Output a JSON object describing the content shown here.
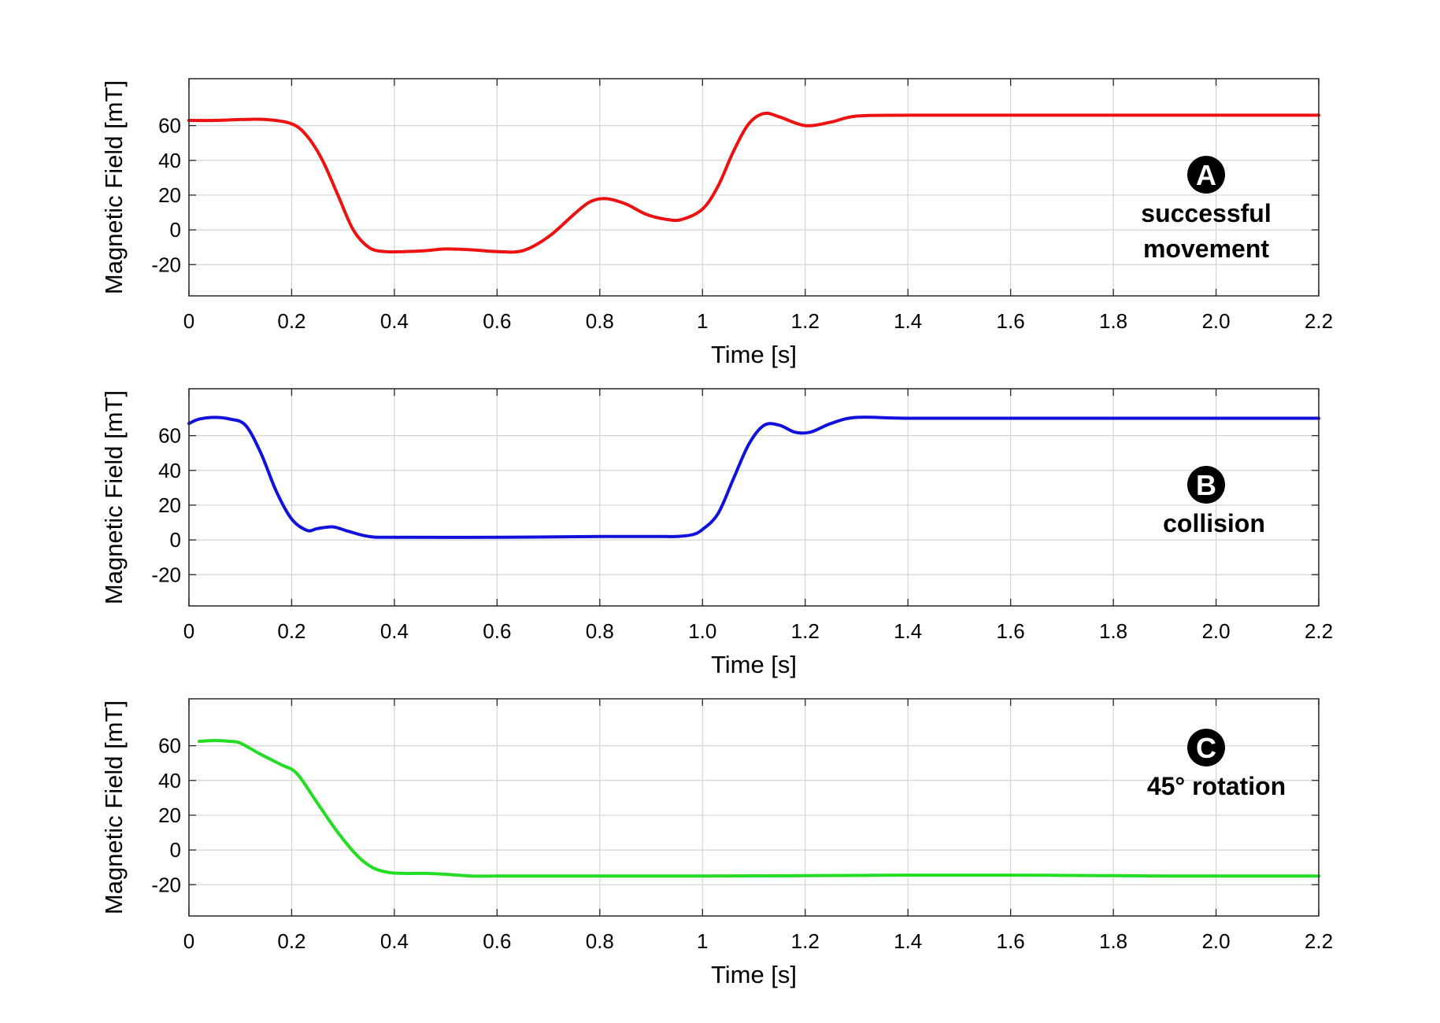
{
  "chart_data": [
    {
      "type": "line",
      "xlabel": "Time [s]",
      "ylabel": "Magnetic Field [mT]",
      "xlim": [
        0,
        2.2
      ],
      "ylim": [
        -38,
        87
      ],
      "x_ticks": [
        0,
        0.2,
        0.4,
        0.6,
        0.8,
        1,
        1.2,
        1.4,
        1.6,
        1.8,
        2.0,
        2.2
      ],
      "x_tick_labels": [
        "0",
        "0.2",
        "0.4",
        "0.6",
        "0.8",
        "1",
        "1.2",
        "1.4",
        "1.6",
        "1.8",
        "2.0",
        "2.2"
      ],
      "y_ticks": [
        -20,
        0,
        20,
        40,
        60
      ],
      "y_tick_labels": [
        "-20",
        "0",
        "20",
        "40",
        "60"
      ],
      "grid": true,
      "badge": "A",
      "annotation": [
        "successful",
        "movement"
      ],
      "series": [
        {
          "color": "#ee1111",
          "x": [
            0,
            0.05,
            0.1,
            0.15,
            0.2,
            0.23,
            0.26,
            0.29,
            0.32,
            0.35,
            0.38,
            0.42,
            0.46,
            0.5,
            0.55,
            0.6,
            0.65,
            0.7,
            0.75,
            0.78,
            0.81,
            0.85,
            0.89,
            0.93,
            0.96,
            1.0,
            1.03,
            1.06,
            1.09,
            1.12,
            1.15,
            1.2,
            1.25,
            1.3,
            1.4,
            1.6,
            1.8,
            2.0,
            2.2
          ],
          "y": [
            63,
            63,
            63.5,
            63.5,
            61,
            54,
            40,
            20,
            0,
            -10,
            -12.5,
            -12.5,
            -12,
            -11,
            -11.5,
            -12.5,
            -12,
            -4,
            9,
            16,
            18,
            15,
            9,
            6,
            6,
            12,
            25,
            45,
            61,
            67,
            65,
            60,
            62,
            65.5,
            66,
            66,
            66,
            66,
            66
          ]
        }
      ]
    },
    {
      "type": "line",
      "xlabel": "Time [s]",
      "ylabel": "Magnetic Field [mT]",
      "xlim": [
        0,
        2.2
      ],
      "ylim": [
        -38,
        87
      ],
      "x_ticks": [
        0,
        0.2,
        0.4,
        0.6,
        0.8,
        1.0,
        1.2,
        1.4,
        1.6,
        1.8,
        2.0,
        2.2
      ],
      "x_tick_labels": [
        "0",
        "0.2",
        "0.4",
        "0.6",
        "0.8",
        "1.0",
        "1.2",
        "1.4",
        "1.6",
        "1.8",
        "2.0",
        "2.2"
      ],
      "y_ticks": [
        -20,
        0,
        20,
        40,
        60
      ],
      "y_tick_labels": [
        "-20",
        "0",
        "20",
        "40",
        "60"
      ],
      "grid": true,
      "badge": "B",
      "annotation": [
        "collision"
      ],
      "series": [
        {
          "color": "#1111dd",
          "x": [
            0,
            0.02,
            0.05,
            0.08,
            0.11,
            0.14,
            0.17,
            0.2,
            0.23,
            0.25,
            0.28,
            0.31,
            0.35,
            0.4,
            0.6,
            0.8,
            0.9,
            0.95,
            0.98,
            1.0,
            1.03,
            1.06,
            1.09,
            1.12,
            1.15,
            1.18,
            1.21,
            1.25,
            1.3,
            1.4,
            1.6,
            1.8,
            2.0,
            2.2
          ],
          "y": [
            67,
            69.5,
            70.5,
            69.5,
            66,
            50,
            28,
            12,
            5.5,
            6.5,
            7.5,
            5,
            2,
            1.5,
            1.5,
            2,
            2,
            2,
            3,
            6,
            15,
            35,
            55,
            66,
            66,
            62,
            62,
            67,
            70.5,
            70,
            70,
            70,
            70,
            70
          ]
        }
      ]
    },
    {
      "type": "line",
      "xlabel": "Time [s]",
      "ylabel": "Magnetic Field [mT]",
      "xlim": [
        0,
        2.2
      ],
      "ylim": [
        -38,
        87
      ],
      "x_ticks": [
        0,
        0.2,
        0.4,
        0.6,
        0.8,
        1,
        1.2,
        1.4,
        1.6,
        1.8,
        2.0,
        2.2
      ],
      "x_tick_labels": [
        "0",
        "0.2",
        "0.4",
        "0.6",
        "0.8",
        "1",
        "1.2",
        "1.4",
        "1.6",
        "1.8",
        "2.0",
        "2.2"
      ],
      "y_ticks": [
        -20,
        0,
        20,
        40,
        60
      ],
      "y_tick_labels": [
        "-20",
        "0",
        "20",
        "40",
        "60"
      ],
      "grid": true,
      "badge": "C",
      "annotation": [
        "45° rotation"
      ],
      "series": [
        {
          "color": "#22dd22",
          "x": [
            0.02,
            0.05,
            0.08,
            0.1,
            0.14,
            0.18,
            0.21,
            0.25,
            0.29,
            0.33,
            0.36,
            0.39,
            0.42,
            0.46,
            0.5,
            0.55,
            0.6,
            0.8,
            1.0,
            1.2,
            1.4,
            1.6,
            1.8,
            1.9,
            2.0,
            2.2
          ],
          "y": [
            62.5,
            63,
            62.5,
            61.5,
            55,
            49,
            44,
            27,
            10,
            -4,
            -10.5,
            -13,
            -13.5,
            -13.5,
            -14,
            -15,
            -15,
            -15,
            -15,
            -14.8,
            -14.5,
            -14.5,
            -14.8,
            -15,
            -15,
            -15
          ]
        }
      ]
    }
  ]
}
